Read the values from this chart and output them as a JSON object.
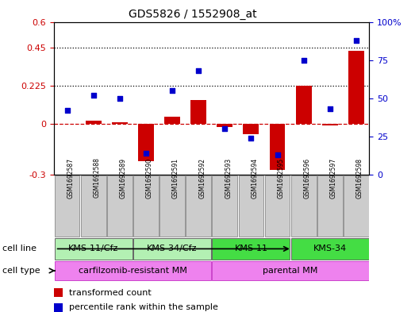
{
  "title": "GDS5826 / 1552908_at",
  "samples": [
    "GSM1692587",
    "GSM1692588",
    "GSM1692589",
    "GSM1692590",
    "GSM1692591",
    "GSM1692592",
    "GSM1692593",
    "GSM1692594",
    "GSM1692595",
    "GSM1692596",
    "GSM1692597",
    "GSM1692598"
  ],
  "transformed_count": [
    0.0,
    0.02,
    0.01,
    -0.22,
    0.04,
    0.14,
    -0.02,
    -0.06,
    -0.27,
    0.225,
    -0.01,
    0.43
  ],
  "percentile_rank": [
    42,
    52,
    50,
    14,
    55,
    68,
    30,
    24,
    13,
    75,
    43,
    88
  ],
  "cell_line_groups": [
    {
      "label": "KMS-11/Cfz",
      "start": 0,
      "end": 3,
      "color": "#b3f0b3"
    },
    {
      "label": "KMS-34/Cfz",
      "start": 3,
      "end": 6,
      "color": "#b3f0b3"
    },
    {
      "label": "KMS-11",
      "start": 6,
      "end": 9,
      "color": "#44dd44"
    },
    {
      "label": "KMS-34",
      "start": 9,
      "end": 12,
      "color": "#44dd44"
    }
  ],
  "cell_type_groups": [
    {
      "label": "carfilzomib-resistant MM",
      "start": 0,
      "end": 6,
      "color": "#ee82ee"
    },
    {
      "label": "parental MM",
      "start": 6,
      "end": 12,
      "color": "#ee82ee"
    }
  ],
  "bar_color": "#cc0000",
  "dot_color": "#0000cc",
  "left_ylim": [
    -0.3,
    0.6
  ],
  "right_ylim": [
    0,
    100
  ],
  "left_yticks": [
    -0.3,
    0,
    0.225,
    0.45,
    0.6
  ],
  "left_yticklabels": [
    "-0.3",
    "0",
    "0.225",
    "0.45",
    "0.6"
  ],
  "right_yticks": [
    0,
    25,
    50,
    75,
    100
  ],
  "right_yticklabels": [
    "0",
    "25",
    "50",
    "75",
    "100%"
  ],
  "hlines": [
    0.225,
    0.45
  ],
  "zero_line": 0.0,
  "legend_items": [
    {
      "label": "transformed count",
      "color": "#cc0000"
    },
    {
      "label": "percentile rank within the sample",
      "color": "#0000cc"
    }
  ],
  "sample_box_color": "#cccccc",
  "figsize": [
    5.23,
    3.93
  ],
  "dpi": 100
}
